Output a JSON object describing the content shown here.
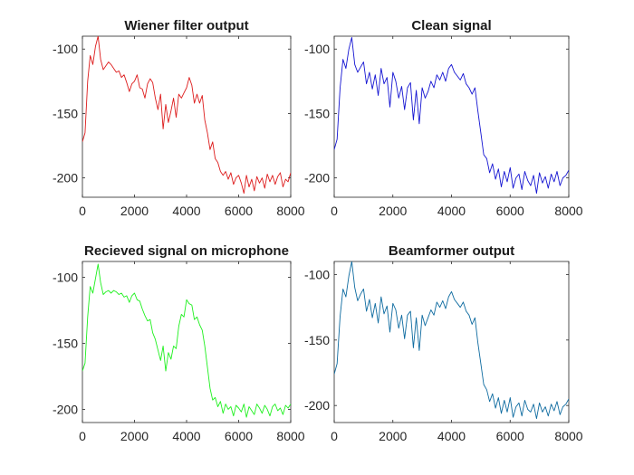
{
  "chart_data": [
    {
      "type": "line",
      "title": "Wiener filter output",
      "color": "#dd1c1c",
      "xlim": [
        0,
        8000
      ],
      "ylim": [
        -215,
        -90
      ],
      "xticks": [
        0,
        2000,
        4000,
        6000,
        8000
      ],
      "yticks": [
        -100,
        -150,
        -200
      ],
      "x": [
        0,
        100,
        200,
        300,
        400,
        500,
        600,
        700,
        800,
        900,
        1000,
        1100,
        1200,
        1300,
        1400,
        1500,
        1600,
        1700,
        1800,
        1900,
        2000,
        2100,
        2200,
        2300,
        2400,
        2500,
        2600,
        2700,
        2800,
        2900,
        3000,
        3100,
        3200,
        3300,
        3400,
        3500,
        3600,
        3700,
        3800,
        3900,
        4000,
        4100,
        4200,
        4300,
        4400,
        4500,
        4600,
        4700,
        4800,
        4900,
        5000,
        5100,
        5200,
        5300,
        5400,
        5500,
        5600,
        5700,
        5800,
        5900,
        6000,
        6100,
        6200,
        6300,
        6400,
        6500,
        6600,
        6700,
        6800,
        6900,
        7000,
        7100,
        7200,
        7300,
        7400,
        7500,
        7600,
        7700,
        7800,
        7900,
        8000
      ],
      "y": [
        -172,
        -165,
        -125,
        -105,
        -112,
        -98,
        -90,
        -108,
        -116,
        -113,
        -110,
        -112,
        -115,
        -118,
        -117,
        -122,
        -120,
        -126,
        -133,
        -127,
        -125,
        -120,
        -130,
        -131,
        -138,
        -127,
        -123,
        -126,
        -138,
        -147,
        -135,
        -162,
        -143,
        -157,
        -148,
        -138,
        -153,
        -135,
        -138,
        -134,
        -130,
        -122,
        -128,
        -142,
        -135,
        -142,
        -136,
        -155,
        -165,
        -178,
        -172,
        -185,
        -188,
        -195,
        -198,
        -195,
        -201,
        -196,
        -205,
        -200,
        -198,
        -204,
        -212,
        -198,
        -207,
        -201,
        -210,
        -199,
        -204,
        -200,
        -208,
        -197,
        -203,
        -198,
        -205,
        -199,
        -196,
        -207,
        -201,
        -203,
        -196
      ]
    },
    {
      "type": "line",
      "title": "Clean signal",
      "color": "#1414d2",
      "xlim": [
        0,
        8000
      ],
      "ylim": [
        -215,
        -90
      ],
      "xticks": [
        0,
        2000,
        4000,
        6000,
        8000
      ],
      "yticks": [
        -100,
        -150,
        -200
      ],
      "x": [
        0,
        100,
        200,
        300,
        400,
        500,
        600,
        700,
        800,
        900,
        1000,
        1100,
        1200,
        1300,
        1400,
        1500,
        1600,
        1700,
        1800,
        1900,
        2000,
        2100,
        2200,
        2300,
        2400,
        2500,
        2600,
        2700,
        2800,
        2900,
        3000,
        3100,
        3200,
        3300,
        3400,
        3500,
        3600,
        3700,
        3800,
        3900,
        4000,
        4100,
        4200,
        4300,
        4400,
        4500,
        4600,
        4700,
        4800,
        4900,
        5000,
        5100,
        5200,
        5300,
        5400,
        5500,
        5600,
        5700,
        5800,
        5900,
        6000,
        6100,
        6200,
        6300,
        6400,
        6500,
        6600,
        6700,
        6800,
        6900,
        7000,
        7100,
        7200,
        7300,
        7400,
        7500,
        7600,
        7700,
        7800,
        7900,
        8000
      ],
      "y": [
        -178,
        -170,
        -130,
        -108,
        -115,
        -100,
        -91,
        -112,
        -118,
        -114,
        -110,
        -127,
        -118,
        -131,
        -120,
        -136,
        -115,
        -127,
        -122,
        -145,
        -118,
        -125,
        -138,
        -129,
        -147,
        -130,
        -126,
        -155,
        -132,
        -158,
        -130,
        -138,
        -133,
        -125,
        -130,
        -120,
        -124,
        -118,
        -125,
        -115,
        -112,
        -118,
        -121,
        -124,
        -119,
        -127,
        -130,
        -135,
        -130,
        -148,
        -165,
        -182,
        -185,
        -196,
        -189,
        -201,
        -193,
        -207,
        -195,
        -203,
        -192,
        -208,
        -200,
        -197,
        -209,
        -195,
        -202,
        -206,
        -198,
        -212,
        -196,
        -204,
        -199,
        -208,
        -197,
        -203,
        -195,
        -206,
        -200,
        -198,
        -194
      ]
    },
    {
      "type": "line",
      "title": "Recieved signal on microphone",
      "color": "#1ef01e",
      "xlim": [
        0,
        8000
      ],
      "ylim": [
        -210,
        -88
      ],
      "xticks": [
        0,
        2000,
        4000,
        6000,
        8000
      ],
      "yticks": [
        -100,
        -150,
        -200
      ],
      "x": [
        0,
        100,
        200,
        300,
        400,
        500,
        600,
        700,
        800,
        900,
        1000,
        1100,
        1200,
        1300,
        1400,
        1500,
        1600,
        1700,
        1800,
        1900,
        2000,
        2100,
        2200,
        2300,
        2400,
        2500,
        2600,
        2700,
        2800,
        2900,
        3000,
        3100,
        3200,
        3300,
        3400,
        3500,
        3600,
        3700,
        3800,
        3900,
        4000,
        4100,
        4200,
        4300,
        4400,
        4500,
        4600,
        4700,
        4800,
        4900,
        5000,
        5100,
        5200,
        5300,
        5400,
        5500,
        5600,
        5700,
        5800,
        5900,
        6000,
        6100,
        6200,
        6300,
        6400,
        6500,
        6600,
        6700,
        6800,
        6900,
        7000,
        7100,
        7200,
        7300,
        7400,
        7500,
        7600,
        7700,
        7800,
        7900,
        8000
      ],
      "y": [
        -171,
        -165,
        -130,
        -107,
        -112,
        -101,
        -90,
        -104,
        -113,
        -111,
        -110,
        -112,
        -110,
        -111,
        -113,
        -112,
        -115,
        -114,
        -119,
        -114,
        -112,
        -117,
        -118,
        -124,
        -129,
        -133,
        -132,
        -142,
        -147,
        -155,
        -163,
        -152,
        -171,
        -157,
        -162,
        -152,
        -154,
        -137,
        -128,
        -130,
        -117,
        -120,
        -121,
        -132,
        -130,
        -136,
        -140,
        -152,
        -168,
        -184,
        -193,
        -191,
        -198,
        -194,
        -203,
        -196,
        -200,
        -198,
        -205,
        -197,
        -199,
        -202,
        -196,
        -206,
        -198,
        -201,
        -204,
        -196,
        -199,
        -203,
        -197,
        -200,
        -205,
        -198,
        -196,
        -201,
        -199,
        -204,
        -197,
        -199,
        -196
      ]
    },
    {
      "type": "line",
      "title": "Beamformer output",
      "color": "#0e6ba0",
      "xlim": [
        0,
        8000
      ],
      "ylim": [
        -213,
        -90
      ],
      "xticks": [
        0,
        2000,
        4000,
        6000,
        8000
      ],
      "yticks": [
        -100,
        -150,
        -200
      ],
      "x": [
        0,
        100,
        200,
        300,
        400,
        500,
        600,
        700,
        800,
        900,
        1000,
        1100,
        1200,
        1300,
        1400,
        1500,
        1600,
        1700,
        1800,
        1900,
        2000,
        2100,
        2200,
        2300,
        2400,
        2500,
        2600,
        2700,
        2800,
        2900,
        3000,
        3100,
        3200,
        3300,
        3400,
        3500,
        3600,
        3700,
        3800,
        3900,
        4000,
        4100,
        4200,
        4300,
        4400,
        4500,
        4600,
        4700,
        4800,
        4900,
        5000,
        5100,
        5200,
        5300,
        5400,
        5500,
        5600,
        5700,
        5800,
        5900,
        6000,
        6100,
        6200,
        6300,
        6400,
        6500,
        6600,
        6700,
        6800,
        6900,
        7000,
        7100,
        7200,
        7300,
        7400,
        7500,
        7600,
        7700,
        7800,
        7900,
        8000
      ],
      "y": [
        -176,
        -168,
        -132,
        -111,
        -117,
        -101,
        -90,
        -110,
        -120,
        -115,
        -111,
        -128,
        -119,
        -133,
        -122,
        -137,
        -117,
        -130,
        -124,
        -144,
        -122,
        -127,
        -141,
        -131,
        -149,
        -131,
        -128,
        -156,
        -133,
        -158,
        -131,
        -139,
        -133,
        -127,
        -131,
        -121,
        -125,
        -120,
        -126,
        -117,
        -113,
        -119,
        -122,
        -125,
        -121,
        -128,
        -131,
        -138,
        -133,
        -152,
        -168,
        -184,
        -188,
        -197,
        -191,
        -202,
        -194,
        -206,
        -196,
        -205,
        -194,
        -209,
        -201,
        -198,
        -208,
        -196,
        -203,
        -205,
        -199,
        -210,
        -198,
        -205,
        -201,
        -208,
        -199,
        -204,
        -197,
        -207,
        -201,
        -199,
        -195
      ]
    }
  ]
}
